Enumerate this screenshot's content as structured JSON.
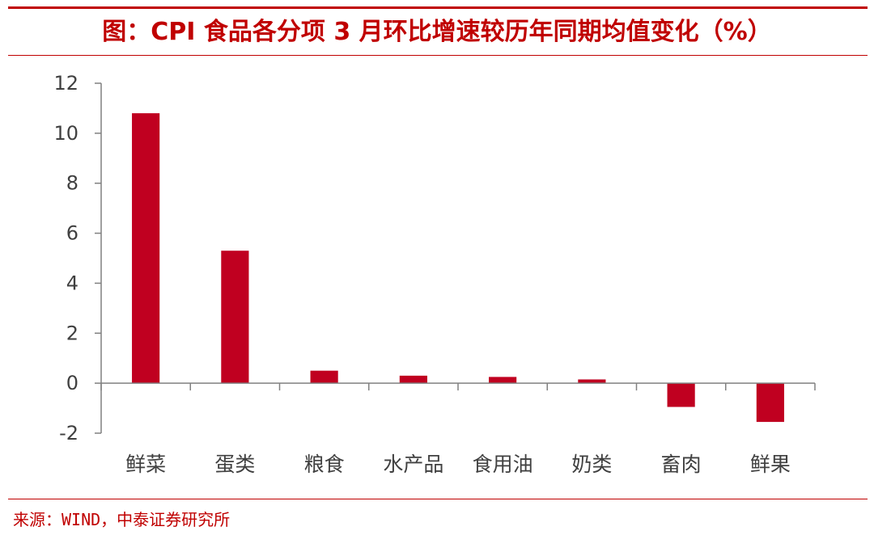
{
  "title": "图：CPI 食品各分项 3 月环比增速较历年同期均值变化（%）",
  "source": "来源：WIND，中泰证券研究所",
  "colors": {
    "accent": "#c00000",
    "bar": "#c00020",
    "axis": "#808080",
    "text": "#404040"
  },
  "chart_data": {
    "type": "bar",
    "categories": [
      "鲜菜",
      "蛋类",
      "粮食",
      "水产品",
      "食用油",
      "奶类",
      "畜肉",
      "鲜果"
    ],
    "values": [
      10.8,
      5.3,
      0.5,
      0.3,
      0.25,
      0.15,
      -0.95,
      -1.55
    ],
    "ylim": [
      -2,
      12
    ],
    "yticks": [
      "-2",
      "0",
      "2",
      "4",
      "6",
      "8",
      "10",
      "12"
    ],
    "xlabel": "",
    "ylabel": ""
  }
}
